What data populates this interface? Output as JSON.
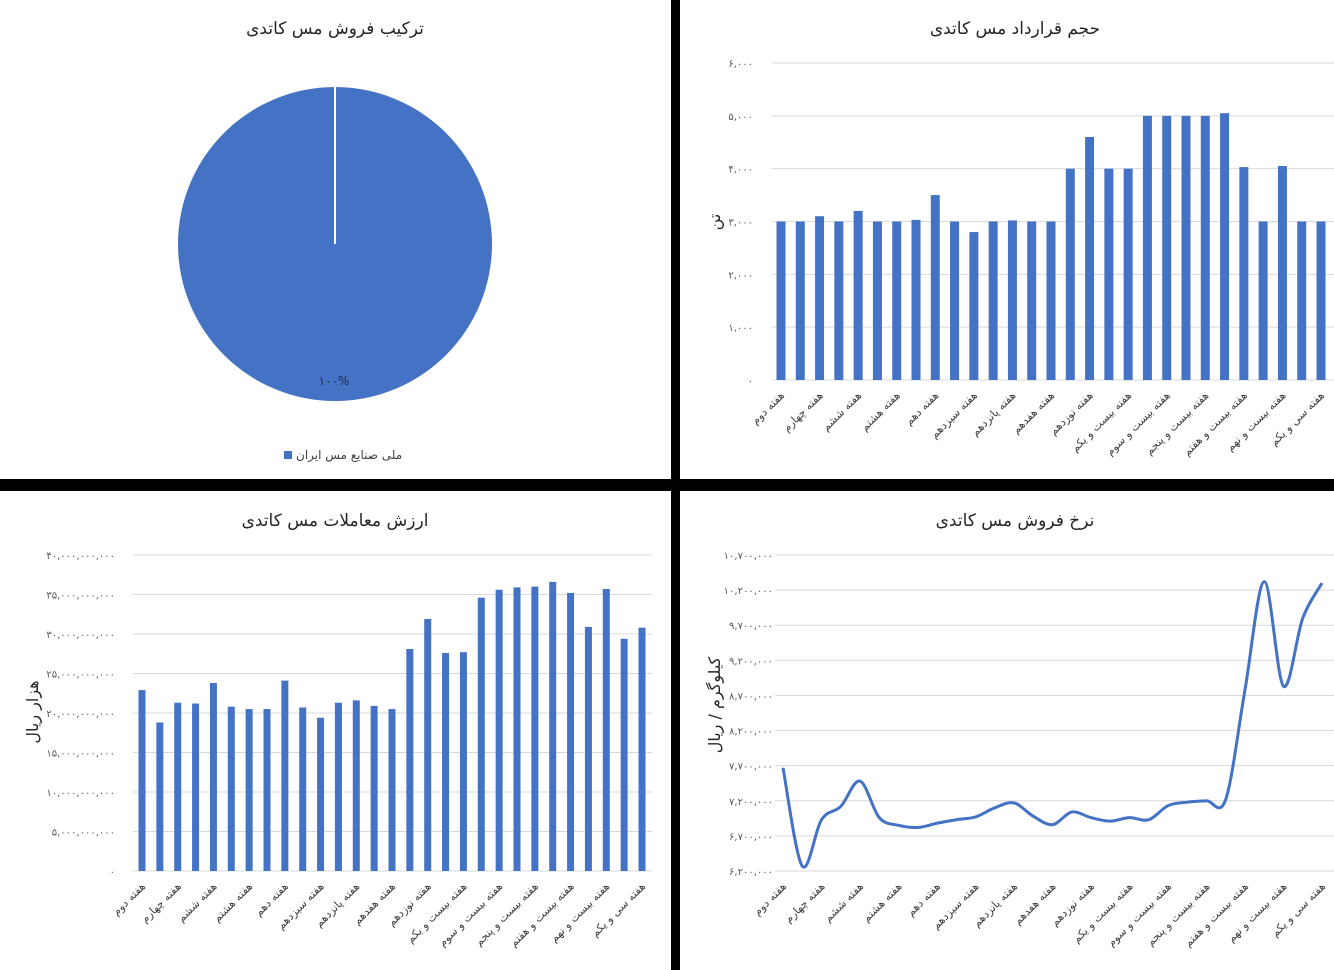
{
  "colors": {
    "series": "#4472c4",
    "grid": "#d9d9d9",
    "separator": "#000000"
  },
  "chart_data": [
    {
      "id": "pie",
      "type": "pie",
      "title": "ترکیب فروش مس کاتدی",
      "slices": [
        {
          "name": "ملی صنایع مس ایران",
          "value": 100,
          "label": "۱۰۰%"
        }
      ],
      "legend": "bottom"
    },
    {
      "id": "volume",
      "type": "bar",
      "title": "حجم قرارداد مس کاتدی",
      "ylabel": "تن",
      "ylim": [
        0,
        6000
      ],
      "yticks": [
        "۰",
        "۱,۰۰۰",
        "۲,۰۰۰",
        "۳,۰۰۰",
        "۴,۰۰۰",
        "۵,۰۰۰",
        "۶,۰۰۰"
      ],
      "grid": true,
      "category_labels": [
        "هفته دوم",
        "",
        "هفته چهارم",
        "",
        "هفته ششم",
        "",
        "هفته هشتم",
        "",
        "هفته دهم",
        "",
        "هفته سیزدهم",
        "",
        "هفته پانزدهم",
        "",
        "هفته هفدهم",
        "",
        "هفته نوزدهم",
        "",
        "هفته بیست و یکم",
        "",
        "هفته بیست و سوم",
        "",
        "هفته بیست و پنجم",
        "",
        "هفته بیست و هفتم",
        "",
        "هفته بیست و نهم",
        "",
        "هفته سی و یکم"
      ],
      "values": [
        3000,
        3000,
        3100,
        3000,
        3200,
        3000,
        3000,
        3030,
        3500,
        3000,
        2800,
        3000,
        3020,
        3000,
        3000,
        4000,
        4600,
        4000,
        4000,
        5000,
        5000,
        5000,
        5000,
        5050,
        4030,
        3000,
        4050,
        3000,
        3000
      ]
    },
    {
      "id": "value",
      "type": "bar",
      "title": "ارزش معاملات مس کاتدی",
      "ylabel": "هزار ریال",
      "ylim": [
        0,
        40000000000
      ],
      "yticks": [
        "۰",
        "۵,۰۰۰,۰۰۰,۰۰۰",
        "۱۰,۰۰۰,۰۰۰,۰۰۰",
        "۱۵,۰۰۰,۰۰۰,۰۰۰",
        "۲۰,۰۰۰,۰۰۰,۰۰۰",
        "۲۵,۰۰۰,۰۰۰,۰۰۰",
        "۳۰,۰۰۰,۰۰۰,۰۰۰",
        "۳۵,۰۰۰,۰۰۰,۰۰۰",
        "۴۰,۰۰۰,۰۰۰,۰۰۰"
      ],
      "grid": true,
      "category_labels": [
        "هفته دوم",
        "",
        "هفته چهارم",
        "",
        "هفته ششم",
        "",
        "هفته هشتم",
        "",
        "هفته دهم",
        "",
        "هفته سیزدهم",
        "",
        "هفته پانزدهم",
        "",
        "هفته هفدهم",
        "",
        "هفته نوزدهم",
        "",
        "هفته بیست و یکم",
        "",
        "هفته بیست و سوم",
        "",
        "هفته بیست و پنجم",
        "",
        "هفته بیست و هفتم",
        "",
        "هفته بیست و نهم",
        "",
        "هفته سی و یکم"
      ],
      "values": [
        22900000000,
        18800000000,
        21300000000,
        21200000000,
        23800000000,
        20800000000,
        20500000000,
        20500000000,
        24100000000,
        20700000000,
        19400000000,
        21300000000,
        21600000000,
        20900000000,
        20500000000,
        28100000000,
        31900000000,
        27600000000,
        27700000000,
        34600000000,
        35600000000,
        35900000000,
        36000000000,
        36600000000,
        35200000000,
        30900000000,
        35700000000,
        29400000000,
        30800000000
      ]
    },
    {
      "id": "price",
      "type": "line",
      "title": "نرخ فروش مس کاتدی",
      "ylabel": "کیلوگرم / ریال",
      "ylim": [
        6200000,
        10700000
      ],
      "yticks": [
        "۶,۲۰۰,۰۰۰",
        "۶,۷۰۰,۰۰۰",
        "۷,۲۰۰,۰۰۰",
        "۷,۷۰۰,۰۰۰",
        "۸,۲۰۰,۰۰۰",
        "۸,۷۰۰,۰۰۰",
        "۹,۲۰۰,۰۰۰",
        "۹,۷۰۰,۰۰۰",
        "۱۰,۲۰۰,۰۰۰",
        "۱۰,۷۰۰,۰۰۰"
      ],
      "grid": true,
      "smooth": true,
      "category_labels": [
        "هفته دوم",
        "",
        "هفته چهارم",
        "",
        "هفته ششم",
        "",
        "هفته هشتم",
        "",
        "هفته دهم",
        "",
        "هفته سیزدهم",
        "",
        "هفته پانزدهم",
        "",
        "هفته هفدهم",
        "",
        "هفته نوزدهم",
        "",
        "هفته بیست و یکم",
        "",
        "هفته بیست و سوم",
        "",
        "هفته بیست و پنجم",
        "",
        "هفته بیست و هفتم",
        "",
        "هفته بیست و نهم",
        "",
        "هفته سی و یکم"
      ],
      "values": [
        7670000,
        6270000,
        6930000,
        7120000,
        7480000,
        6960000,
        6850000,
        6820000,
        6880000,
        6930000,
        6970000,
        7100000,
        7170000,
        6980000,
        6860000,
        7040000,
        6960000,
        6910000,
        6960000,
        6930000,
        7130000,
        7180000,
        7200000,
        7220000,
        8780000,
        10320000,
        8830000,
        9800000,
        10300000
      ]
    }
  ]
}
